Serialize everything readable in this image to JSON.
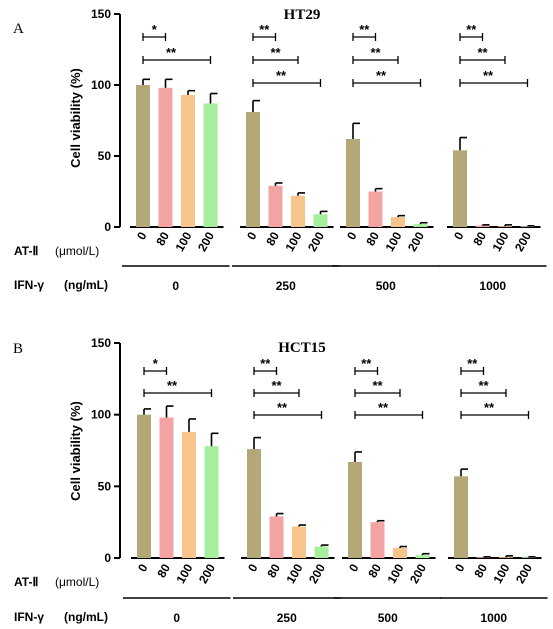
{
  "chart_data": [
    {
      "type": "bar",
      "panel": "A",
      "title": "HT29",
      "ylabel": "Cell viability (%)",
      "ylim": [
        0,
        150
      ],
      "yticks": [
        "0",
        "50",
        "100",
        "150"
      ],
      "at_label": "AT-Ⅱ",
      "at_unit": "(μmol/L)",
      "ifn_label": "IFN-γ",
      "ifn_unit": "(ng/mL)",
      "categories": [
        "0",
        "250",
        "500",
        "1000"
      ],
      "dose_labels": [
        "0",
        "80",
        "100",
        "200"
      ],
      "series_colors": [
        "#b5a878",
        "#f4a3a3",
        "#f7c58c",
        "#a5ee9b"
      ],
      "values": [
        [
          100,
          98,
          93,
          87
        ],
        [
          81,
          29,
          22,
          9
        ],
        [
          62,
          25,
          7,
          2
        ],
        [
          54,
          1,
          0.5,
          0.5
        ]
      ],
      "errors": [
        [
          4,
          6,
          3,
          7
        ],
        [
          8,
          2,
          2,
          2
        ],
        [
          11,
          2,
          1,
          1
        ],
        [
          9,
          0.5,
          1,
          0.3
        ]
      ],
      "brackets": [
        {
          "group": 0,
          "from": 0,
          "to": 1,
          "label": "*"
        },
        {
          "group": 0,
          "from": 0,
          "to": 3,
          "label": "**"
        },
        {
          "group": 1,
          "from": 0,
          "to": 1,
          "label": "**"
        },
        {
          "group": 1,
          "from": 0,
          "to": 2,
          "label": "**"
        },
        {
          "group": 1,
          "from": 0,
          "to": 3,
          "label": "**"
        },
        {
          "group": 2,
          "from": 0,
          "to": 1,
          "label": "**"
        },
        {
          "group": 2,
          "from": 0,
          "to": 2,
          "label": "**"
        },
        {
          "group": 2,
          "from": 0,
          "to": 3,
          "label": "**"
        },
        {
          "group": 3,
          "from": 0,
          "to": 1,
          "label": "**"
        },
        {
          "group": 3,
          "from": 0,
          "to": 2,
          "label": "**"
        },
        {
          "group": 3,
          "from": 0,
          "to": 3,
          "label": "**"
        }
      ]
    },
    {
      "type": "bar",
      "panel": "B",
      "title": "HCT15",
      "ylabel": "Cell viability (%)",
      "ylim": [
        0,
        150
      ],
      "yticks": [
        "0",
        "50",
        "100",
        "150"
      ],
      "at_label": "AT-Ⅱ",
      "at_unit": "(μmol/L)",
      "ifn_label": "IFN-γ",
      "ifn_unit": "(ng/mL)",
      "categories": [
        "0",
        "250",
        "500",
        "1000"
      ],
      "dose_labels": [
        "0",
        "80",
        "100",
        "200"
      ],
      "series_colors": [
        "#b5a878",
        "#f4a3a3",
        "#f7c58c",
        "#a5ee9b"
      ],
      "values": [
        [
          100,
          98,
          88,
          78
        ],
        [
          76,
          29,
          22,
          8
        ],
        [
          67,
          25,
          7,
          2
        ],
        [
          57,
          0.5,
          0.5,
          0.5
        ]
      ],
      "errors": [
        [
          4,
          8,
          9,
          9
        ],
        [
          8,
          2,
          1,
          1
        ],
        [
          7,
          1,
          1,
          1
        ],
        [
          5,
          0.3,
          1,
          0.3
        ]
      ],
      "brackets": [
        {
          "group": 0,
          "from": 0,
          "to": 1,
          "label": "*"
        },
        {
          "group": 0,
          "from": 0,
          "to": 3,
          "label": "**"
        },
        {
          "group": 1,
          "from": 0,
          "to": 1,
          "label": "**"
        },
        {
          "group": 1,
          "from": 0,
          "to": 2,
          "label": "**"
        },
        {
          "group": 1,
          "from": 0,
          "to": 3,
          "label": "**"
        },
        {
          "group": 2,
          "from": 0,
          "to": 1,
          "label": "**"
        },
        {
          "group": 2,
          "from": 0,
          "to": 2,
          "label": "**"
        },
        {
          "group": 2,
          "from": 0,
          "to": 3,
          "label": "**"
        },
        {
          "group": 3,
          "from": 0,
          "to": 1,
          "label": "**"
        },
        {
          "group": 3,
          "from": 0,
          "to": 2,
          "label": "**"
        },
        {
          "group": 3,
          "from": 0,
          "to": 3,
          "label": "**"
        }
      ]
    }
  ]
}
